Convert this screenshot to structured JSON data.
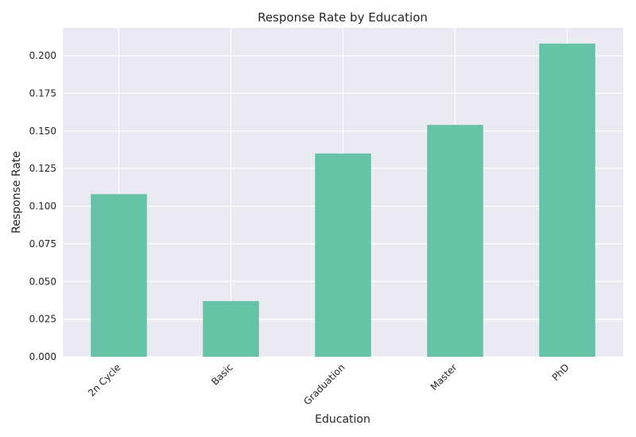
{
  "chart_data": {
    "type": "bar",
    "title": "Response Rate by Education",
    "xlabel": "Education",
    "ylabel": "Response Rate",
    "categories": [
      "2n Cycle",
      "Basic",
      "Graduation",
      "Master",
      "PhD"
    ],
    "values": [
      0.108,
      0.037,
      0.135,
      0.154,
      0.208
    ],
    "ylim": [
      0,
      0.2185
    ],
    "yticks": [
      "0.000",
      "0.025",
      "0.050",
      "0.075",
      "0.100",
      "0.125",
      "0.150",
      "0.175",
      "0.200"
    ],
    "ytick_values": [
      0,
      0.025,
      0.05,
      0.075,
      0.1,
      0.125,
      0.15,
      0.175,
      0.2
    ],
    "grid": true,
    "colors": {
      "bar": "#66c2a5",
      "plot_background": "#eaeaf2",
      "grid": "#ffffff"
    }
  }
}
